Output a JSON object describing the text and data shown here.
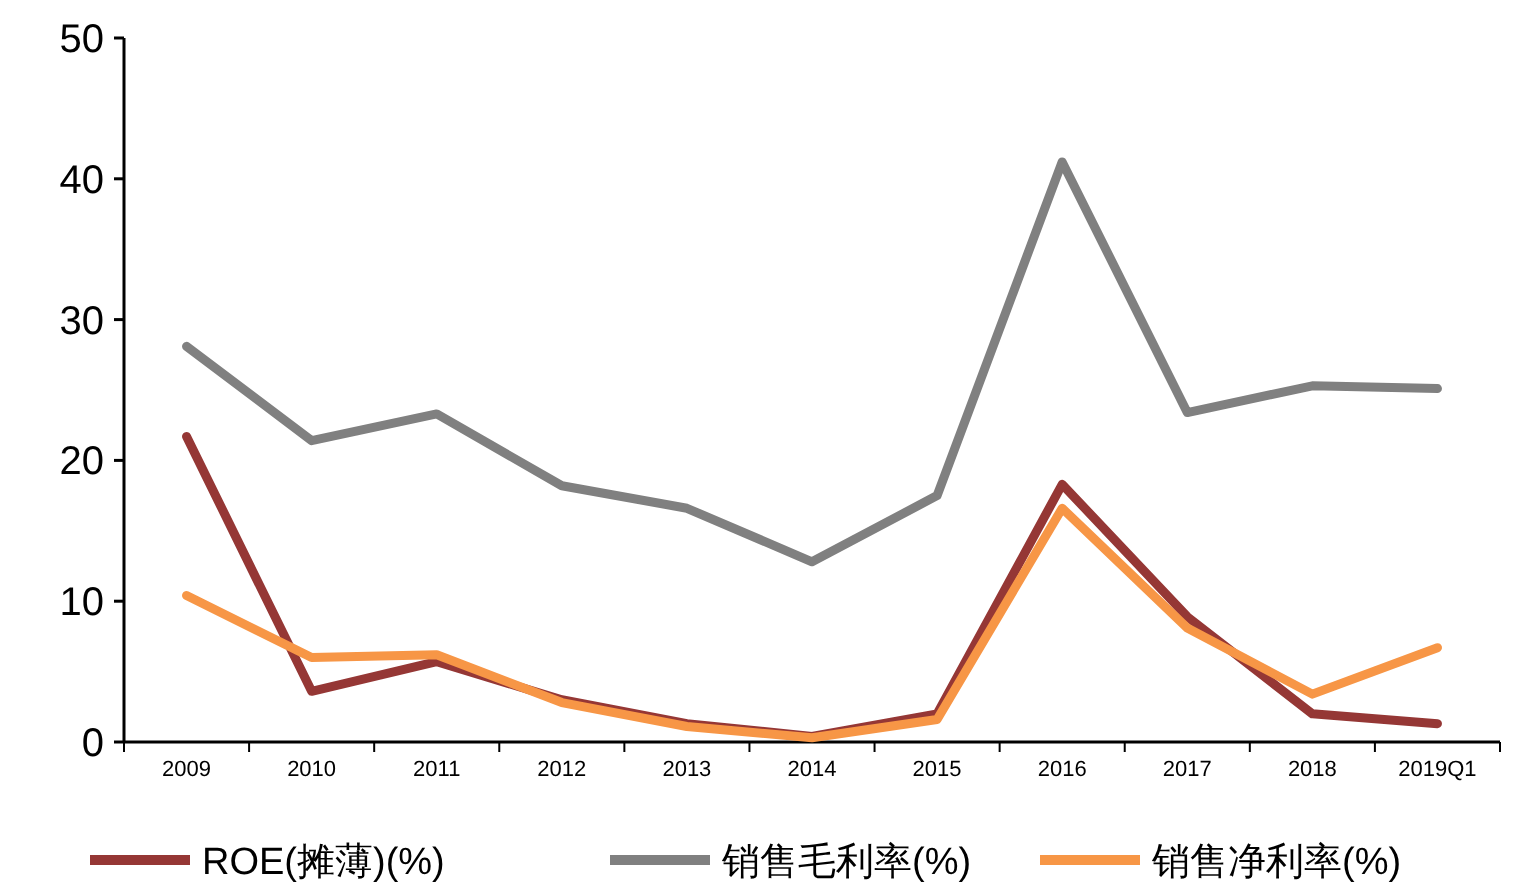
{
  "chart_data": {
    "type": "line",
    "categories": [
      "2009",
      "2010",
      "2011",
      "2012",
      "2013",
      "2014",
      "2015",
      "2016",
      "2017",
      "2018",
      "2019Q1"
    ],
    "series": [
      {
        "name": "ROE(摊薄)(%)",
        "color": "#953735",
        "values": [
          21.7,
          3.6,
          5.7,
          3.0,
          1.3,
          0.4,
          2.0,
          18.3,
          8.9,
          2.0,
          1.3
        ]
      },
      {
        "name": "销售毛利率(%)",
        "color": "#808080",
        "values": [
          28.1,
          21.4,
          23.3,
          18.2,
          16.6,
          12.8,
          17.5,
          41.2,
          23.4,
          25.3,
          25.1
        ]
      },
      {
        "name": "销售净利率(%)",
        "color": "#f79646",
        "values": [
          10.4,
          6.0,
          6.2,
          2.8,
          1.1,
          0.3,
          1.6,
          16.6,
          8.1,
          3.4,
          6.7
        ]
      }
    ],
    "ylim": [
      0,
      50
    ],
    "yticks": [
      0,
      10,
      20,
      30,
      40,
      50
    ],
    "grid": false,
    "legend": "bottom",
    "marker": "none",
    "line_style": "solid"
  }
}
